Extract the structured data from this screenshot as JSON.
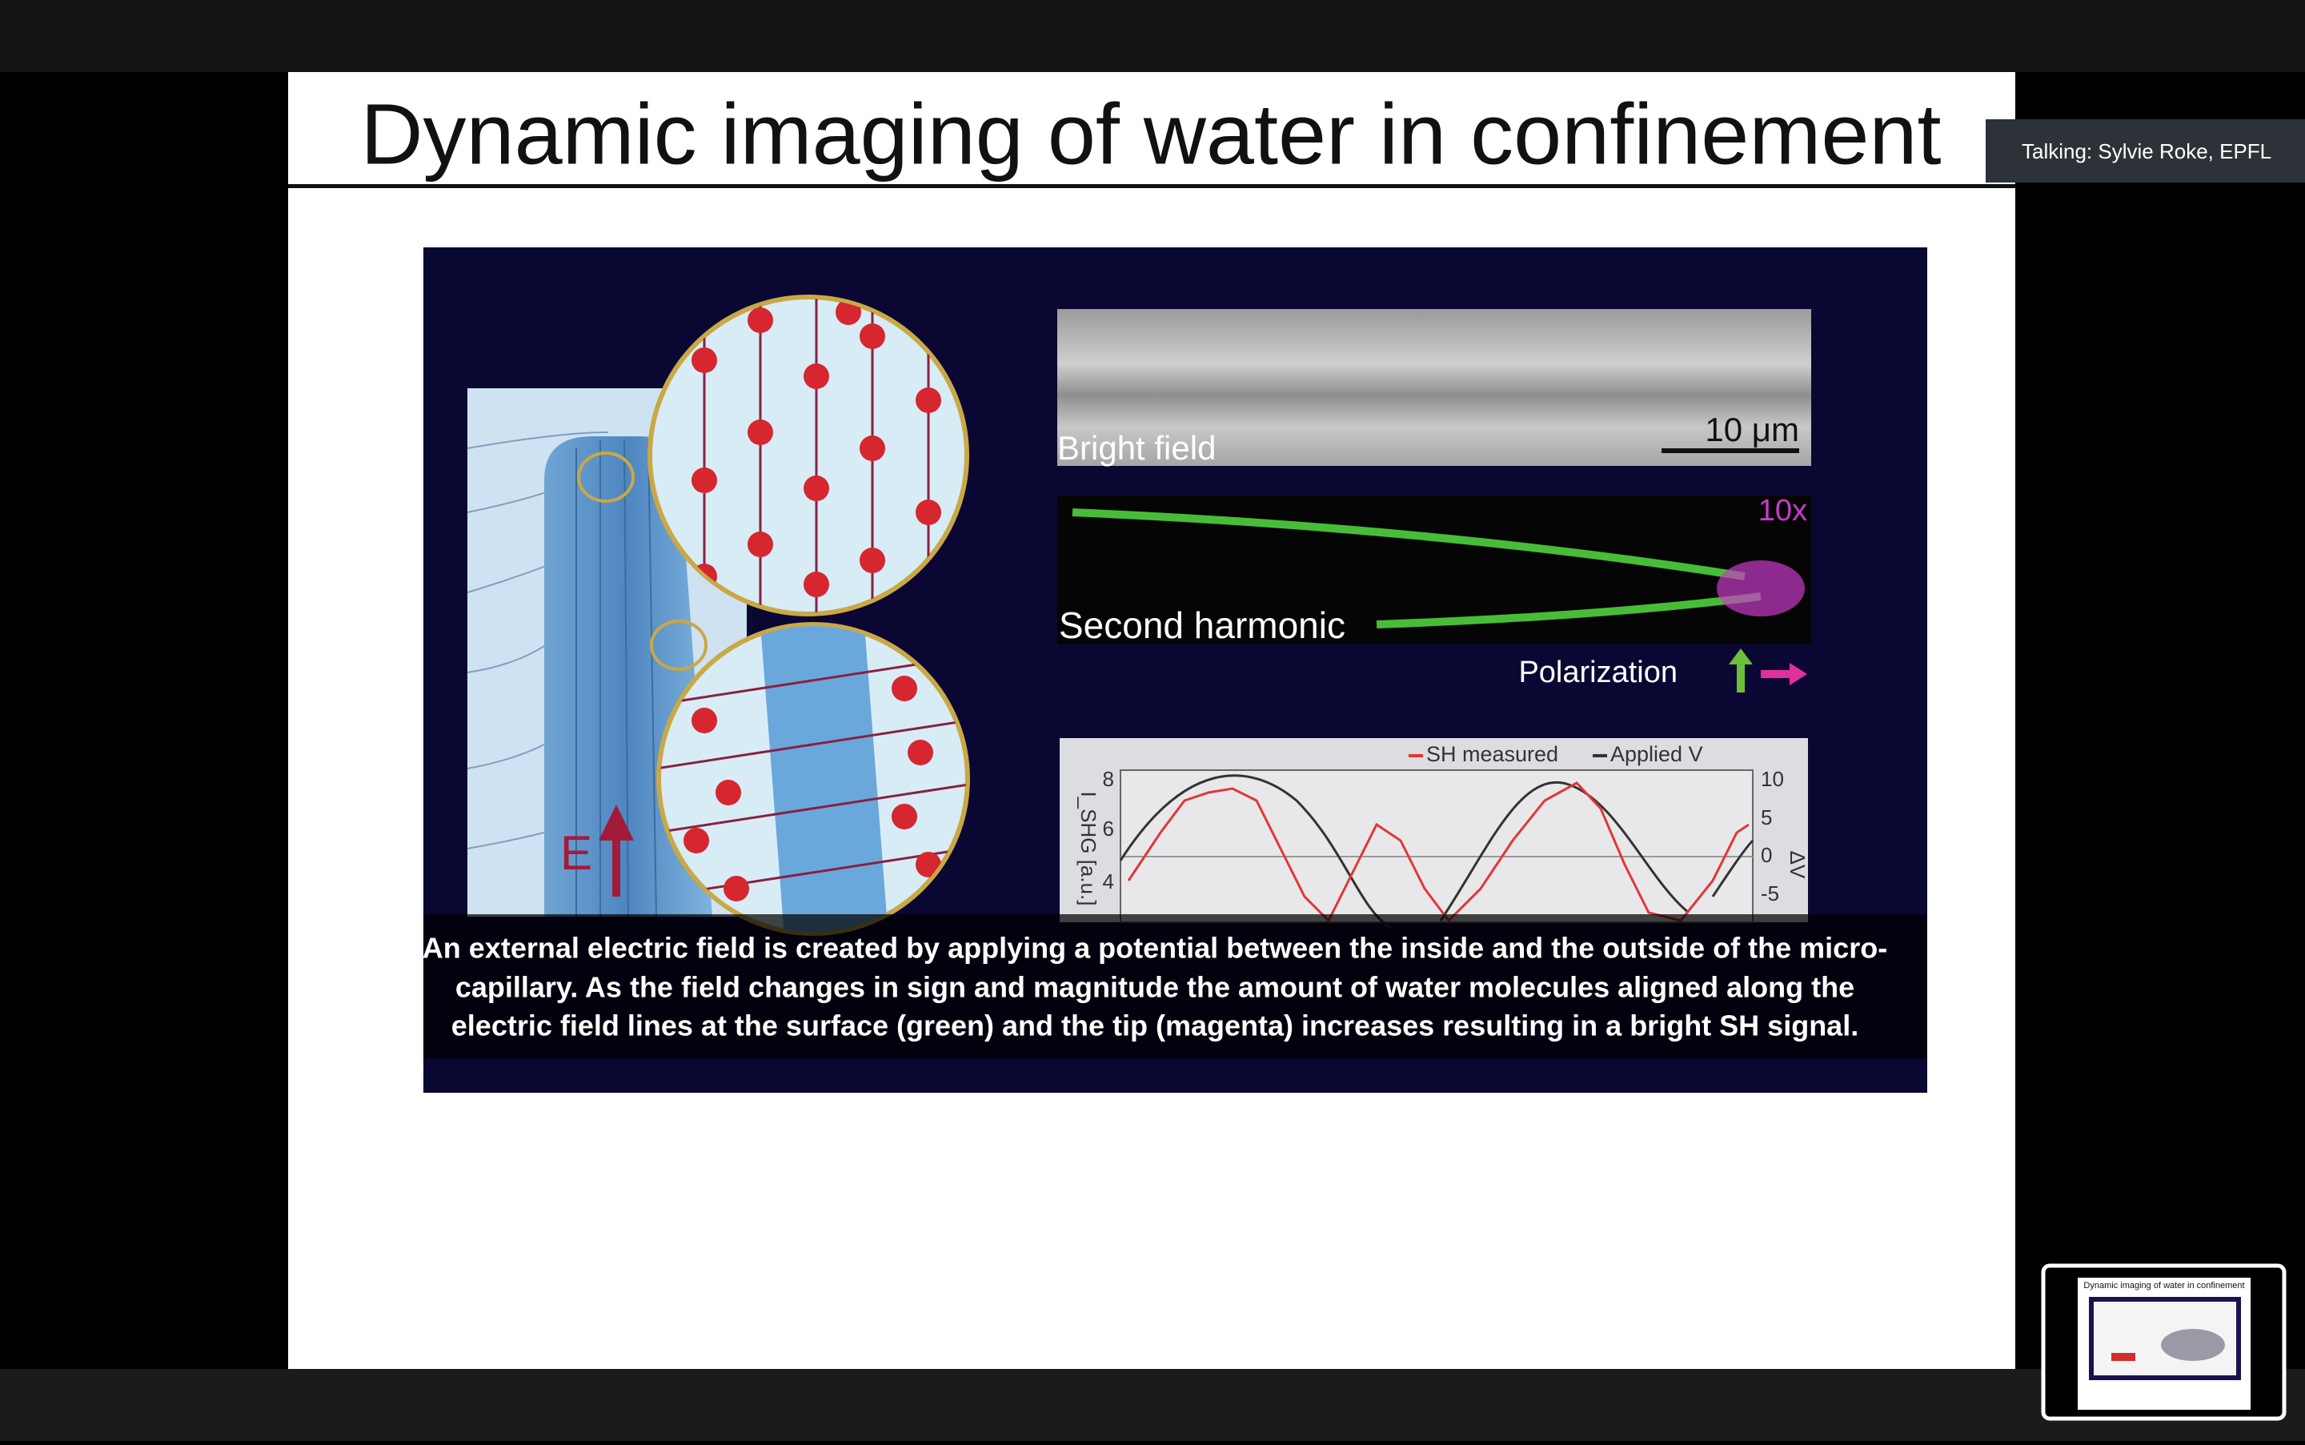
{
  "slide": {
    "title": "Dynamic imaging of water in confinement",
    "figure": {
      "bright_field": {
        "label": "Bright field",
        "scale_bar": "10 μm"
      },
      "second_harmonic": {
        "label": "Second harmonic",
        "gain": "10x",
        "polarization": "Polarization"
      },
      "field_label": "E",
      "plot": {
        "legend": [
          "SH measured",
          "Applied V"
        ],
        "y_label": "I_SHG [a.u.]",
        "y2_label": "ΔV",
        "yticks": [
          "8",
          "6",
          "4"
        ],
        "y2ticks": [
          "10",
          "5",
          "0",
          "-5"
        ]
      },
      "caption": [
        "An external electric field is created by applying a potential between the inside and the outside of the micro-",
        "capillary. As the field changes in sign and magnitude the amount of water molecules aligned along the",
        "electric field lines at the surface (green) and the tip (magenta) increases resulting in a bright SH signal."
      ]
    }
  },
  "speaker": {
    "talking": "Talking: Sylvie Roke, EPFL"
  },
  "thumbnail": {
    "title": "Dynamic imaging of water in confinement"
  }
}
